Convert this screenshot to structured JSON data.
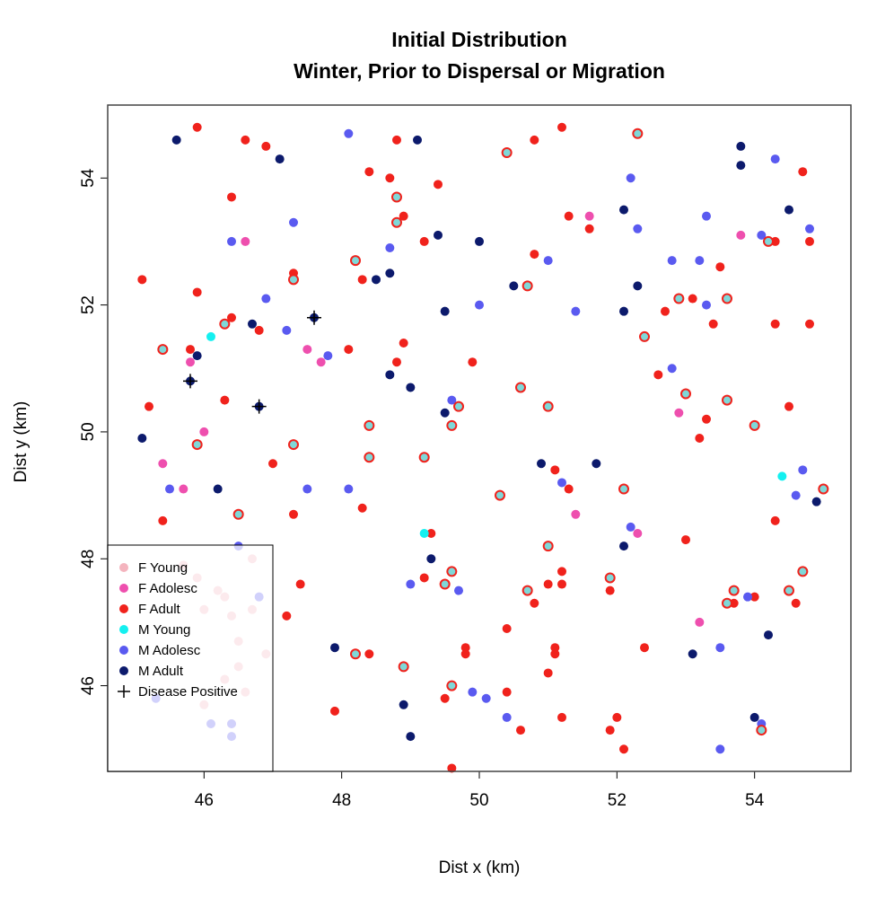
{
  "chart_data": {
    "type": "scatter",
    "title": "Initial Distribution",
    "subtitle": "Winter, Prior to Dispersal or Migration",
    "xlabel": "Dist x (km)",
    "ylabel": "Dist y (km)",
    "xlim": [
      44.6,
      55.4
    ],
    "ylim": [
      44.65,
      55.15
    ],
    "xticks": [
      46,
      48,
      50,
      52,
      54
    ],
    "yticks": [
      46,
      48,
      50,
      52,
      54
    ],
    "legend_position": "bottom-left",
    "grid": false,
    "colors": {
      "F Young": "#f4b4be",
      "F Adolesc": "#ee4fae",
      "F Adult": "#f0221c",
      "M Young": "#14f0f0",
      "M Adolesc": "#5a5af0",
      "M Adult": "#0c1a6c"
    },
    "legend": [
      "F Young",
      "F Adolesc",
      "F Adult",
      "M Young",
      "M Adolesc",
      "M Adult",
      "Disease Positive"
    ],
    "series": [
      {
        "name": "F Young",
        "points": [
          [
            46.3,
            47.4
          ],
          [
            46.7,
            48.0
          ],
          [
            46.5,
            46.3
          ],
          [
            46.4,
            47.1
          ],
          [
            46.5,
            46.7
          ],
          [
            46.9,
            46.5
          ],
          [
            46.0,
            45.7
          ],
          [
            45.9,
            47.7
          ],
          [
            46.3,
            46.1
          ],
          [
            46.6,
            45.9
          ],
          [
            46.7,
            47.2
          ],
          [
            45.7,
            47.9
          ],
          [
            46.4,
            45.4
          ],
          [
            46.0,
            47.2
          ],
          [
            46.2,
            47.5
          ]
        ]
      },
      {
        "name": "F Adolesc",
        "points": [
          [
            46.6,
            53.0
          ],
          [
            45.8,
            51.1
          ],
          [
            47.5,
            51.3
          ],
          [
            46.0,
            50.0
          ],
          [
            45.4,
            49.5
          ],
          [
            45.7,
            49.1
          ],
          [
            47.7,
            51.1
          ],
          [
            51.6,
            53.4
          ],
          [
            53.8,
            53.1
          ],
          [
            52.9,
            50.3
          ],
          [
            51.4,
            48.7
          ],
          [
            52.3,
            48.4
          ],
          [
            53.2,
            47.0
          ]
        ]
      },
      {
        "name": "F Adult",
        "points": [
          [
            45.9,
            54.8
          ],
          [
            46.6,
            54.6
          ],
          [
            46.9,
            54.5
          ],
          [
            46.4,
            53.7
          ],
          [
            48.4,
            54.1
          ],
          [
            48.8,
            54.6
          ],
          [
            48.7,
            54.0
          ],
          [
            49.4,
            53.9
          ],
          [
            51.2,
            54.8
          ],
          [
            50.8,
            54.6
          ],
          [
            45.1,
            52.4
          ],
          [
            45.9,
            52.2
          ],
          [
            46.4,
            51.8
          ],
          [
            46.8,
            51.6
          ],
          [
            45.8,
            51.3
          ],
          [
            46.3,
            50.5
          ],
          [
            45.2,
            50.4
          ],
          [
            47.3,
            52.5
          ],
          [
            48.3,
            52.4
          ],
          [
            48.9,
            53.4
          ],
          [
            49.2,
            53.0
          ],
          [
            50.8,
            52.8
          ],
          [
            51.3,
            53.4
          ],
          [
            51.6,
            53.2
          ],
          [
            53.5,
            52.6
          ],
          [
            54.7,
            54.1
          ],
          [
            54.8,
            53.0
          ],
          [
            54.3,
            53.0
          ],
          [
            53.1,
            52.1
          ],
          [
            52.7,
            51.9
          ],
          [
            53.4,
            51.7
          ],
          [
            54.3,
            51.7
          ],
          [
            54.8,
            51.7
          ],
          [
            52.6,
            50.9
          ],
          [
            53.3,
            50.2
          ],
          [
            53.2,
            49.9
          ],
          [
            54.5,
            50.4
          ],
          [
            48.9,
            51.4
          ],
          [
            49.9,
            51.1
          ],
          [
            48.1,
            51.3
          ],
          [
            48.8,
            51.1
          ],
          [
            47.0,
            49.5
          ],
          [
            47.3,
            48.7
          ],
          [
            45.4,
            48.6
          ],
          [
            48.3,
            48.8
          ],
          [
            49.3,
            48.4
          ],
          [
            51.1,
            49.4
          ],
          [
            51.3,
            49.1
          ],
          [
            53.0,
            48.3
          ],
          [
            54.3,
            48.6
          ],
          [
            47.4,
            47.6
          ],
          [
            47.2,
            47.1
          ],
          [
            48.4,
            46.5
          ],
          [
            49.2,
            47.7
          ],
          [
            51.2,
            47.8
          ],
          [
            51.0,
            47.6
          ],
          [
            51.2,
            47.6
          ],
          [
            50.8,
            47.3
          ],
          [
            51.9,
            47.5
          ],
          [
            53.7,
            47.3
          ],
          [
            54.6,
            47.3
          ],
          [
            54.0,
            47.4
          ],
          [
            49.8,
            46.6
          ],
          [
            50.4,
            46.9
          ],
          [
            51.1,
            46.6
          ],
          [
            51.1,
            46.5
          ],
          [
            52.4,
            46.6
          ],
          [
            51.0,
            46.2
          ],
          [
            49.8,
            46.5
          ],
          [
            47.9,
            45.6
          ],
          [
            49.5,
            45.8
          ],
          [
            50.4,
            45.9
          ],
          [
            51.2,
            45.5
          ],
          [
            52.0,
            45.5
          ],
          [
            51.9,
            45.3
          ],
          [
            52.1,
            45.0
          ],
          [
            50.6,
            45.3
          ],
          [
            49.6,
            44.7
          ]
        ]
      },
      {
        "name": "M Young",
        "points": [
          [
            46.1,
            51.5
          ],
          [
            54.4,
            49.3
          ],
          [
            49.2,
            48.4
          ]
        ]
      },
      {
        "name": "M Adolesc",
        "points": [
          [
            48.1,
            54.7
          ],
          [
            46.4,
            53.0
          ],
          [
            47.3,
            53.3
          ],
          [
            46.9,
            52.1
          ],
          [
            47.2,
            51.6
          ],
          [
            47.8,
            51.2
          ],
          [
            48.7,
            52.9
          ],
          [
            50.0,
            52.0
          ],
          [
            51.0,
            52.7
          ],
          [
            51.4,
            51.9
          ],
          [
            52.3,
            53.2
          ],
          [
            52.2,
            54.0
          ],
          [
            52.8,
            52.7
          ],
          [
            53.2,
            52.7
          ],
          [
            53.3,
            53.4
          ],
          [
            53.3,
            52.0
          ],
          [
            54.3,
            54.3
          ],
          [
            54.1,
            53.1
          ],
          [
            54.8,
            53.2
          ],
          [
            52.8,
            51.0
          ],
          [
            49.6,
            50.5
          ],
          [
            45.5,
            49.1
          ],
          [
            47.5,
            49.1
          ],
          [
            48.1,
            49.1
          ],
          [
            49.0,
            47.6
          ],
          [
            49.7,
            47.5
          ],
          [
            51.2,
            49.2
          ],
          [
            52.2,
            48.5
          ],
          [
            52.1,
            49.1
          ],
          [
            53.5,
            46.6
          ],
          [
            53.9,
            47.4
          ],
          [
            54.7,
            49.4
          ],
          [
            54.6,
            49.0
          ],
          [
            54.1,
            45.4
          ],
          [
            53.5,
            45.0
          ],
          [
            50.1,
            45.8
          ],
          [
            49.9,
            45.9
          ],
          [
            50.4,
            45.5
          ],
          [
            46.4,
            45.2
          ],
          [
            46.1,
            45.4
          ],
          [
            46.5,
            48.2
          ],
          [
            46.8,
            47.4
          ],
          [
            45.3,
            45.8
          ],
          [
            46.4,
            45.4
          ]
        ]
      },
      {
        "name": "M Adult",
        "points": [
          [
            45.6,
            54.6
          ],
          [
            47.1,
            54.3
          ],
          [
            49.1,
            54.6
          ],
          [
            53.8,
            54.5
          ],
          [
            53.8,
            54.2
          ],
          [
            54.5,
            53.5
          ],
          [
            52.1,
            53.5
          ],
          [
            49.4,
            53.1
          ],
          [
            50.0,
            53.0
          ],
          [
            48.7,
            52.5
          ],
          [
            48.5,
            52.4
          ],
          [
            50.5,
            52.3
          ],
          [
            52.3,
            52.3
          ],
          [
            49.5,
            51.9
          ],
          [
            52.1,
            51.9
          ],
          [
            46.7,
            51.7
          ],
          [
            45.9,
            51.2
          ],
          [
            48.7,
            50.9
          ],
          [
            49.0,
            50.7
          ],
          [
            49.5,
            50.3
          ],
          [
            45.1,
            49.9
          ],
          [
            46.2,
            49.1
          ],
          [
            50.9,
            49.5
          ],
          [
            51.7,
            49.5
          ],
          [
            54.9,
            48.9
          ],
          [
            52.1,
            48.2
          ],
          [
            49.3,
            48.0
          ],
          [
            54.7,
            47.8
          ],
          [
            54.2,
            46.8
          ],
          [
            53.6,
            47.3
          ],
          [
            47.9,
            46.6
          ],
          [
            53.1,
            46.5
          ],
          [
            48.9,
            45.7
          ],
          [
            49.0,
            45.2
          ],
          [
            54.0,
            45.5
          ]
        ]
      }
    ],
    "ringed_points": [
      [
        53.6,
        52.1
      ],
      [
        52.4,
        51.5
      ],
      [
        53.0,
        50.6
      ],
      [
        50.6,
        50.7
      ],
      [
        51.0,
        50.4
      ],
      [
        49.7,
        50.4
      ],
      [
        49.6,
        50.1
      ],
      [
        48.4,
        50.1
      ],
      [
        47.3,
        49.8
      ],
      [
        45.9,
        49.8
      ],
      [
        48.4,
        49.6
      ],
      [
        49.2,
        49.6
      ],
      [
        50.3,
        49.0
      ],
      [
        52.1,
        49.1
      ],
      [
        55.0,
        49.1
      ],
      [
        53.6,
        50.5
      ],
      [
        54.0,
        50.1
      ],
      [
        51.0,
        48.2
      ],
      [
        49.6,
        47.8
      ],
      [
        51.9,
        47.7
      ],
      [
        49.5,
        47.6
      ],
      [
        50.7,
        47.5
      ],
      [
        54.5,
        47.5
      ],
      [
        54.7,
        47.8
      ],
      [
        53.7,
        47.5
      ],
      [
        53.6,
        47.3
      ],
      [
        48.9,
        46.3
      ],
      [
        48.2,
        46.5
      ],
      [
        49.6,
        46.0
      ],
      [
        54.1,
        45.3
      ],
      [
        45.4,
        51.3
      ],
      [
        46.3,
        51.7
      ],
      [
        47.3,
        52.4
      ],
      [
        48.2,
        52.7
      ],
      [
        48.8,
        53.3
      ],
      [
        48.8,
        53.7
      ],
      [
        50.4,
        54.4
      ],
      [
        52.3,
        54.7
      ],
      [
        50.7,
        52.3
      ],
      [
        52.9,
        52.1
      ],
      [
        54.2,
        53.0
      ],
      [
        46.5,
        48.7
      ]
    ],
    "disease_positive": [
      [
        45.8,
        50.8
      ],
      [
        46.8,
        50.4
      ],
      [
        47.6,
        51.8
      ]
    ]
  }
}
